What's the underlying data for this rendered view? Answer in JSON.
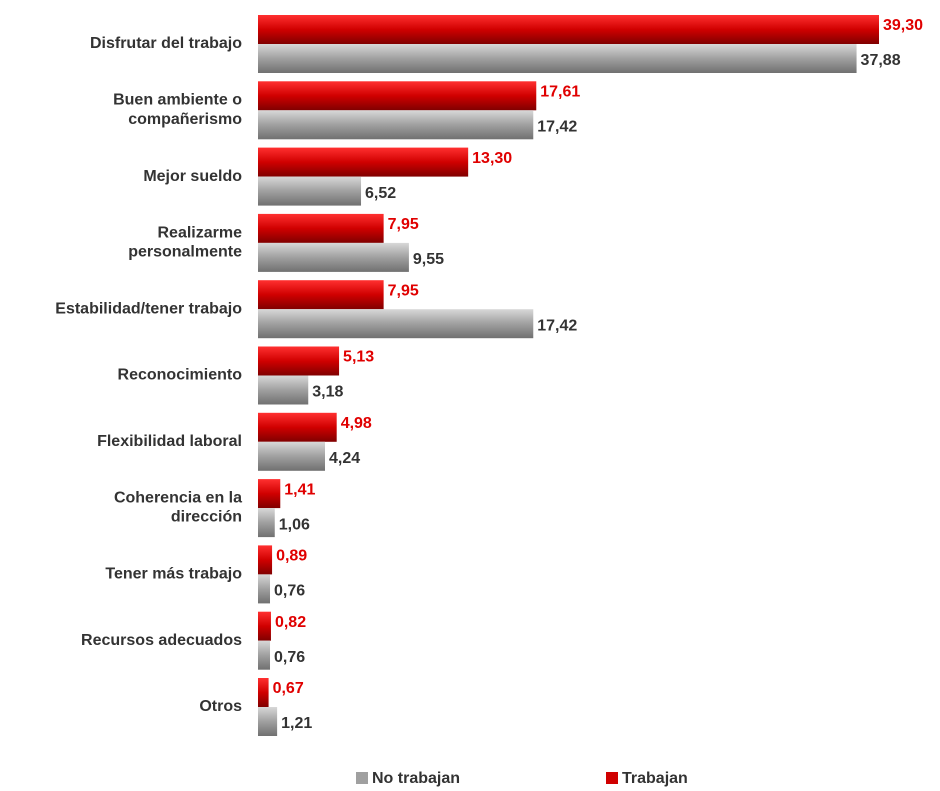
{
  "chart_data": {
    "type": "hbar",
    "categories": [
      "Disfrutar del trabajo",
      "Buen ambiente o\ncompañerismo",
      "Mejor sueldo",
      "Realizarme\npersonalmente",
      "Estabilidad/tener trabajo",
      "Reconocimiento",
      "Flexibilidad laboral",
      "Coherencia en la\ndirección",
      "Tener más trabajo",
      "Recursos adecuados",
      "Otros"
    ],
    "series": [
      {
        "name": "No trabajan",
        "color": "#a0a0a0",
        "values": [
          37.88,
          17.42,
          6.52,
          9.55,
          17.42,
          3.18,
          4.24,
          1.06,
          0.76,
          0.76,
          1.21
        ],
        "value_labels": [
          "37,88",
          "17,42",
          "6,52",
          "9,55",
          "17,42",
          "3,18",
          "4,24",
          "1,06",
          "0,76",
          "0,76",
          "1,21"
        ]
      },
      {
        "name": "Trabajan",
        "color": "#d00000",
        "values": [
          39.3,
          17.61,
          13.3,
          7.95,
          7.95,
          5.13,
          4.98,
          1.41,
          0.89,
          0.82,
          0.67
        ],
        "value_labels": [
          "39,30",
          "17,61",
          "13,30",
          "7,95",
          "7,95",
          "5,13",
          "4,98",
          "1,41",
          "0,89",
          "0,82",
          "0,67"
        ]
      }
    ],
    "legend": "bottom"
  }
}
